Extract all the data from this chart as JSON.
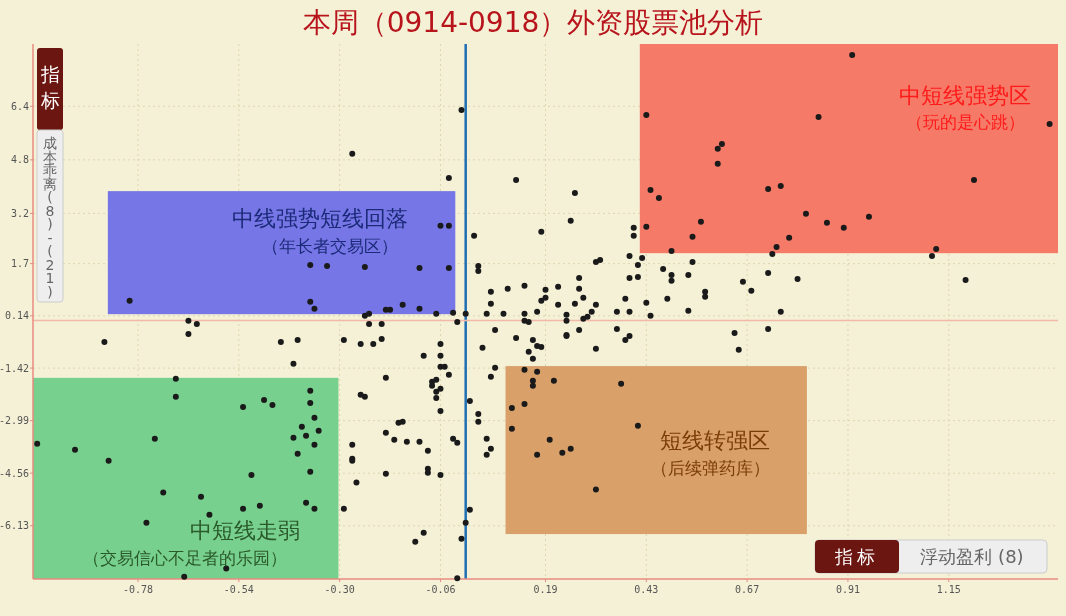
{
  "chart_data": {
    "type": "scatter",
    "title": "本周（0914-0918）外资股票池分析",
    "xlabel": "浮动盈利 (8)",
    "ylabel": "成本乖离(8)-(21)",
    "annotations": [
      "指标",
      "指标",
      "中线强势短线回落",
      "（年长者交易区）",
      "中短线强势区",
      "（玩的是心跳）",
      "短线转强区",
      "（后续弹药库）",
      "中短线走弱",
      "（交易信心不足者的乐园）"
    ],
    "xlim": [
      -1.03,
      1.41
    ],
    "ylim": [
      -7.72,
      8.26
    ],
    "xticks": [
      -0.78,
      -0.54,
      {
        "value": -0.3,
        "label": "-0.30"
      },
      -0.06,
      0.19,
      0.43,
      0.67,
      0.91,
      1.15
    ],
    "yticks": [
      6.4,
      4.8,
      3.2,
      1.7,
      0.14,
      -1.42,
      -2.99,
      -4.56,
      -6.13
    ],
    "grid": true,
    "marker": "circle",
    "ref_lines": [
      {
        "axis": "x",
        "value": 0,
        "color": "#1f6fb5"
      },
      {
        "axis": "y",
        "value": 0,
        "color": "#f2b8a8"
      }
    ],
    "series": [
      {
        "color": "#1a1a1a",
        "x": [
          -0.27,
          -0.8,
          -0.37,
          -0.33,
          -0.37,
          -0.36,
          -0.66,
          -0.64,
          -0.66,
          -0.86,
          -0.44,
          -0.4,
          -0.29,
          -0.41,
          -0.69,
          -0.69,
          -0.37,
          -0.48,
          -0.37,
          -0.53,
          -0.46,
          -0.36,
          -0.39,
          -0.35,
          -0.41,
          -0.38,
          -0.36,
          -0.27,
          -1.02,
          -0.93,
          -0.74,
          -0.4,
          -0.85,
          -0.27,
          -0.27,
          -0.37,
          -0.51,
          -0.26,
          -0.72,
          -0.63,
          -0.53,
          -0.49,
          -0.38,
          -0.36,
          -0.29,
          -0.61,
          -0.76,
          -0.57,
          -0.67,
          -0.25,
          -0.01,
          -0.04,
          0.12,
          0.26,
          0.25,
          0.18,
          0.02,
          -0.06,
          -0.04,
          -0.24,
          -0.11,
          -0.04,
          0.03,
          0.03,
          0.43,
          0.44,
          0.46,
          0.43,
          0.4,
          0.4,
          0.56,
          0.54,
          0.49,
          0.39,
          0.42,
          0.31,
          0.32,
          0.41,
          0.27,
          0.39,
          0.41,
          0.47,
          0.49,
          0.49,
          0.54,
          0.53,
          0.06,
          0.1,
          0.14,
          0.19,
          0.22,
          0.27,
          0.28,
          0.06,
          0.18,
          0.19,
          0.22,
          0.26,
          0.31,
          0.38,
          0.48,
          0.43,
          0.53,
          0.36,
          0.39,
          0.3,
          0.24,
          0.05,
          0.09,
          0.14,
          0.17,
          0.0,
          0.44,
          0.29,
          -0.24,
          -0.23,
          -0.19,
          -0.18,
          -0.15,
          -0.11,
          -0.07,
          -0.03,
          -0.02,
          -0.23,
          -0.2,
          -0.25,
          -0.22,
          -0.2,
          -0.06,
          -0.1,
          -0.06,
          -0.06,
          -0.05,
          -0.04,
          -0.08,
          -0.07,
          -0.08,
          -0.07,
          -0.06,
          -0.07,
          -0.06,
          -0.19,
          -0.24,
          -0.16,
          -0.15,
          -0.19,
          -0.17,
          -0.14,
          -0.11,
          -0.09,
          -0.03,
          -0.02,
          -0.09,
          -0.09,
          -0.19,
          -0.06,
          -0.1,
          -0.12,
          -0.02,
          -0.01,
          0.0,
          0.01,
          0.01,
          0.03,
          0.03,
          0.04,
          0.07,
          0.07,
          0.06,
          0.05,
          0.06,
          0.05,
          0.12,
          0.16,
          0.15,
          0.17,
          0.18,
          0.24,
          0.24,
          0.27,
          0.31,
          0.36,
          0.38,
          0.39,
          0.24,
          0.28,
          0.14,
          0.15,
          0.16,
          0.14,
          0.17,
          0.16,
          0.16,
          0.21,
          0.11,
          0.14,
          0.11,
          0.2,
          0.17,
          0.23,
          0.25,
          0.31,
          0.37,
          0.41,
          0.92,
          0.84,
          1.39,
          0.61,
          0.6,
          0.6,
          0.72,
          0.75,
          1.21,
          0.81,
          0.86,
          0.9,
          0.96,
          0.77,
          0.74,
          0.73,
          1.12,
          1.11,
          0.72,
          0.66,
          0.79,
          0.68,
          0.57,
          0.57,
          1.19,
          0.75,
          0.72,
          0.64,
          0.65
        ],
        "values": [
          4.98,
          0.59,
          1.66,
          1.63,
          0.56,
          0.35,
          -0.01,
          -0.1,
          -0.4,
          -0.64,
          -0.64,
          -0.58,
          -0.58,
          -1.29,
          -1.74,
          -2.28,
          -2.1,
          -2.37,
          -2.46,
          -2.58,
          -2.52,
          -2.9,
          -3.17,
          -3.29,
          -3.5,
          -3.44,
          -3.71,
          -3.71,
          -3.68,
          -3.86,
          -3.53,
          -3.98,
          -4.19,
          -4.13,
          -4.19,
          -4.52,
          -4.61,
          -4.84,
          -5.14,
          -5.26,
          -5.62,
          -5.53,
          -5.44,
          -5.62,
          -5.62,
          -5.8,
          -6.04,
          -7.41,
          -7.65,
          -2.22,
          6.29,
          4.26,
          4.2,
          3.81,
          2.98,
          2.65,
          2.53,
          2.83,
          2.83,
          1.6,
          1.57,
          1.57,
          1.63,
          1.48,
          6.14,
          3.9,
          3.66,
          2.8,
          2.77,
          2.53,
          2.95,
          2.5,
          2.08,
          1.93,
          1.87,
          1.75,
          1.81,
          1.66,
          1.27,
          1.27,
          1.3,
          1.54,
          1.36,
          1.19,
          1.75,
          1.36,
          0.86,
          0.95,
          1.04,
          0.92,
          1.01,
          0.95,
          0.68,
          0.5,
          0.59,
          0.68,
          0.47,
          0.5,
          0.47,
          0.65,
          0.65,
          0.53,
          0.29,
          0.26,
          0.26,
          0.26,
          0.17,
          0.2,
          0.2,
          0.2,
          0.26,
          0.2,
          0.14,
          0.11,
          0.14,
          0.2,
          0.32,
          0.32,
          0.47,
          0.35,
          0.2,
          0.23,
          -0.04,
          -0.1,
          -0.1,
          -0.7,
          -0.7,
          -0.55,
          -0.7,
          -1.05,
          -1.05,
          -1.38,
          -1.38,
          -1.62,
          -1.83,
          -1.77,
          -1.95,
          -2.13,
          -2.04,
          -2.31,
          -2.7,
          -1.71,
          -2.28,
          -3.05,
          -3.02,
          -3.35,
          -3.56,
          -3.62,
          -3.62,
          -3.89,
          -3.53,
          -3.65,
          -4.43,
          -4.55,
          -4.58,
          -4.61,
          -6.34,
          -6.61,
          -7.7,
          -6.52,
          -6.04,
          -5.65,
          -2.4,
          -2.79,
          -3.02,
          -0.81,
          -0.28,
          -1.41,
          -1.68,
          -3.53,
          -3.83,
          -4.01,
          -0.52,
          -0.58,
          -0.93,
          -0.76,
          -0.79,
          -0.43,
          -0.46,
          -0.28,
          -0.84,
          -0.25,
          -0.58,
          -0.46,
          -0.01,
          0.05,
          -0.01,
          -0.04,
          -1.14,
          -1.47,
          -1.53,
          -1.8,
          -1.95,
          -1.8,
          -2.61,
          -2.49,
          -3.23,
          -3.56,
          -4.01,
          -3.95,
          -3.83,
          -5.05,
          -1.89,
          -3.14,
          7.93,
          6.08,
          5.87,
          5.27,
          5.13,
          4.68,
          3.93,
          4.02,
          4.2,
          3.19,
          2.92,
          2.77,
          3.1,
          2.47,
          2.2,
          1.99,
          2.14,
          1.93,
          1.42,
          1.16,
          1.24,
          0.89,
          0.86,
          0.71,
          1.21,
          0.26,
          -0.25,
          -0.37,
          -0.87
        ]
      }
    ]
  }
}
